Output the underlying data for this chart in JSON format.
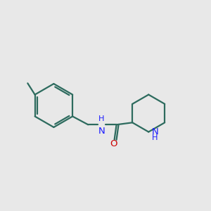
{
  "background_color": "#e8e8e8",
  "bond_color": "#2d6b5e",
  "nitrogen_color": "#1a1aff",
  "oxygen_color": "#cc0000",
  "line_width": 1.6,
  "font_size": 9.5,
  "figsize": [
    3.0,
    3.0
  ],
  "dpi": 100,
  "xlim": [
    0,
    10
  ],
  "ylim": [
    1,
    9
  ]
}
